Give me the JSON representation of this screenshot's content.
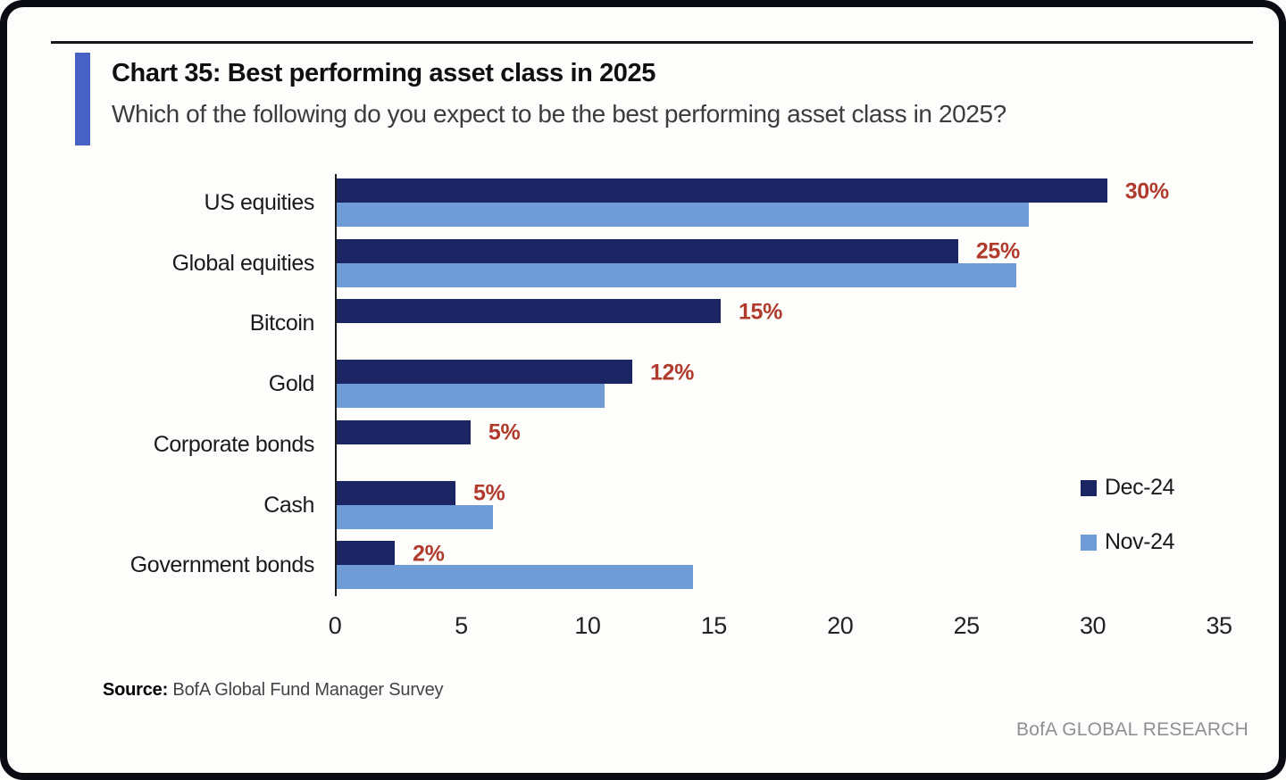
{
  "header": {
    "title": "Chart 35: Best performing asset class in 2025",
    "subtitle": "Which of the following do you expect to be the best performing asset class in 2025?"
  },
  "chart_data": {
    "type": "bar",
    "orientation": "horizontal",
    "title": "Chart 35: Best performing asset class in 2025",
    "categories": [
      "US equities",
      "Global equities",
      "Bitcoin",
      "Gold",
      "Corporate bonds",
      "Cash",
      "Government bonds"
    ],
    "series": [
      {
        "name": "Dec-24",
        "color": "#1b2564",
        "values": [
          30.5,
          24.6,
          15.2,
          11.7,
          5.3,
          4.7,
          2.3
        ],
        "labels": [
          "30%",
          "25%",
          "15%",
          "12%",
          "5%",
          "5%",
          "2%"
        ]
      },
      {
        "name": "Nov-24",
        "color": "#6f9cd7",
        "values": [
          27.4,
          26.9,
          0,
          10.6,
          0,
          6.2,
          14.1
        ]
      }
    ],
    "xlim": [
      0,
      35
    ],
    "x_ticks": [
      0,
      5,
      10,
      15,
      20,
      25,
      30,
      35
    ],
    "grid": "off",
    "legend_position": "right-middle",
    "data_label_color": "#b03a2c"
  },
  "colors": {
    "accent_bar": "#4761c4",
    "dec_series": "#1b2564",
    "nov_series": "#6f9cd7",
    "data_label": "#b03a2c",
    "frame": "#0b0b13"
  },
  "footer": {
    "source_label": "Source:",
    "source_text": " BofA Global Fund Manager Survey",
    "branding": "BofA GLOBAL RESEARCH"
  }
}
